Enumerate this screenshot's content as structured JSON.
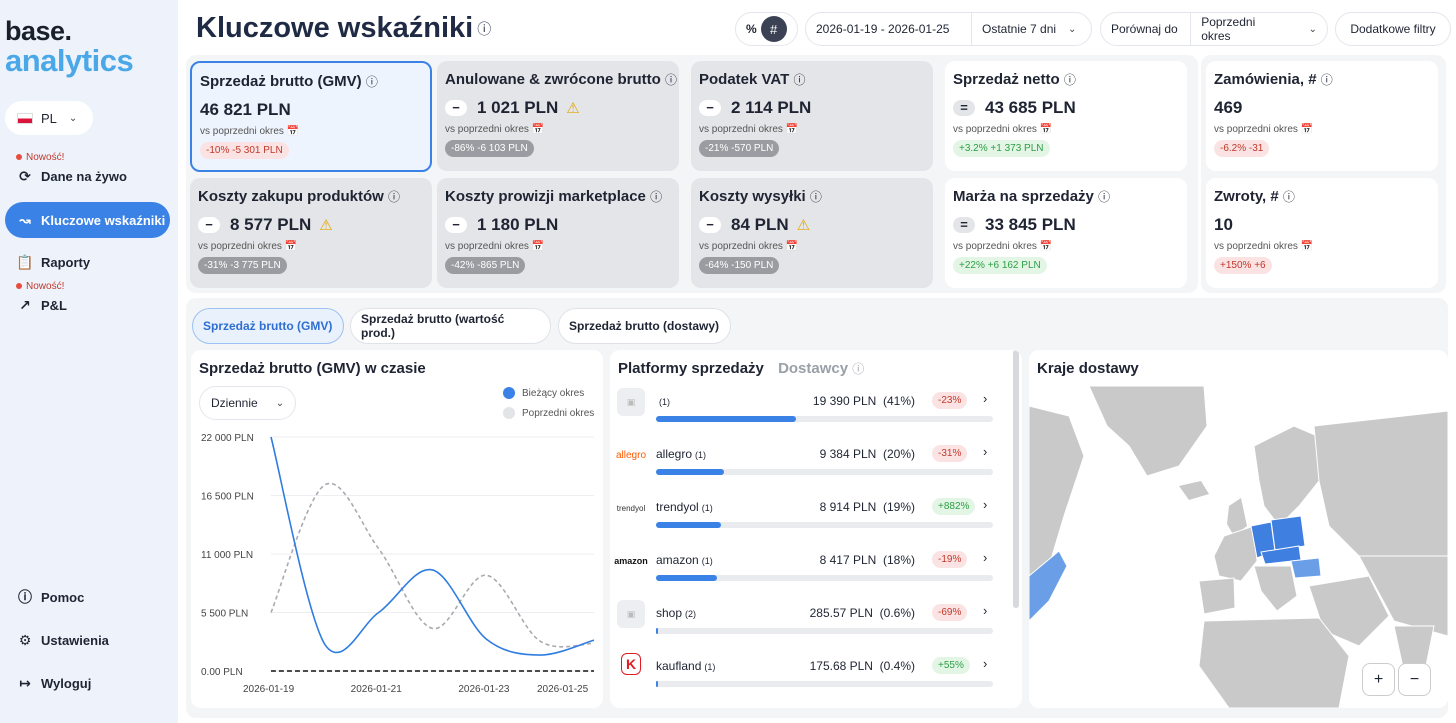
{
  "logo": {
    "line1": "base.",
    "line2": "analytics"
  },
  "lang": {
    "code": "PL"
  },
  "sidebar": {
    "new_label": "Nowość!",
    "items": [
      {
        "label": "Dane na żywo"
      },
      {
        "label": "Kluczowe wskaźniki"
      },
      {
        "label": "Raporty"
      },
      {
        "label": "P&L"
      },
      {
        "label": "Pomoc"
      },
      {
        "label": "Ustawienia"
      },
      {
        "label": "Wyloguj"
      }
    ]
  },
  "header": {
    "title": "Kluczowe wskaźniki",
    "pct": "%",
    "hash": "#",
    "date_range": "2026-01-19 - 2026-01-25",
    "period": "Ostatnie 7 dni",
    "compare_label": "Porównaj do",
    "compare_value": "Poprzedni okres",
    "filters": "Dodatkowe filtry"
  },
  "kpi_sub": "vs poprzedni okres",
  "kpis": [
    {
      "title": "Sprzedaż brutto (GMV)",
      "value": "46 821 PLN",
      "sign": "",
      "chip": "-10%   -5 301 PLN",
      "chip_kind": "red"
    },
    {
      "title": "Anulowane & zwrócone brutto",
      "value": "1 021 PLN",
      "sign": "−",
      "chip": "-86%   -6 103 PLN",
      "chip_kind": "grey"
    },
    {
      "title": "Podatek VAT",
      "value": "2 114 PLN",
      "sign": "−",
      "chip": "-21%   -570 PLN",
      "chip_kind": "grey"
    },
    {
      "title": "Sprzedaż netto",
      "value": "43 685 PLN",
      "sign": "=",
      "chip": "+3.2%   +1 373 PLN",
      "chip_kind": "green"
    },
    {
      "title": "Zamówienia, #",
      "value": "469",
      "sign": "",
      "chip": "-6.2%   -31",
      "chip_kind": "red"
    },
    {
      "title": "Koszty zakupu produktów",
      "value": "8 577 PLN",
      "sign": "−",
      "chip": "-31%   -3 775 PLN",
      "chip_kind": "grey"
    },
    {
      "title": "Koszty prowizji marketplace",
      "value": "1 180 PLN",
      "sign": "−",
      "chip": "-42%   -865 PLN",
      "chip_kind": "grey"
    },
    {
      "title": "Koszty wysyłki",
      "value": "84 PLN",
      "sign": "−",
      "chip": "-64%   -150 PLN",
      "chip_kind": "grey"
    },
    {
      "title": "Marża na sprzedaży",
      "value": "33 845 PLN",
      "sign": "=",
      "chip": "+22%   +6 162 PLN",
      "chip_kind": "green"
    },
    {
      "title": "Zwroty, #",
      "value": "10",
      "sign": "",
      "chip": "+150%   +6",
      "chip_kind": "red"
    }
  ],
  "tabs": [
    "Sprzedaż brutto (GMV)",
    "Sprzedaż brutto (wartość prod.)",
    "Sprzedaż brutto (dostawy)"
  ],
  "chart_panel": {
    "title": "Sprzedaż brutto (GMV) w czasie",
    "granularity": "Dziennie"
  },
  "chart_data": {
    "type": "line",
    "title": "Sprzedaż brutto (GMV) w czasie",
    "y_ticks": [
      "22 000 PLN",
      "16 500 PLN",
      "11 000 PLN",
      "5 500 PLN",
      "0.00 PLN"
    ],
    "x_ticks": [
      "2026-01-19",
      "2026-01-21",
      "2026-01-23",
      "2026-01-25"
    ],
    "ylim": [
      0,
      22000
    ],
    "x": [
      "2026-01-19",
      "2026-01-20",
      "2026-01-21",
      "2026-01-22",
      "2026-01-23",
      "2026-01-24",
      "2026-01-25"
    ],
    "series": [
      {
        "name": "Bieżący okres",
        "color": "#2f7de1",
        "style": "solid",
        "values": [
          22000,
          2500,
          5500,
          9500,
          3000,
          1500,
          2900
        ]
      },
      {
        "name": "Poprzedni okres",
        "color": "#a9abb0",
        "style": "dashed",
        "values": [
          5500,
          17500,
          11500,
          4000,
          9000,
          2800,
          2600
        ]
      },
      {
        "name": "",
        "color": "#111111",
        "style": "dashed",
        "values": [
          0,
          0,
          0,
          0,
          0,
          0,
          0
        ]
      }
    ],
    "legend": "top-right",
    "grid": true
  },
  "platforms": {
    "title": "Platformy sprzedaży",
    "alt_title": "Dostawcy",
    "rows": [
      {
        "name": "",
        "count": "(1)",
        "value": "19 390 PLN",
        "share": "(41%)",
        "fraction": 0.41,
        "change": "-23%",
        "kind": "red",
        "logo": ""
      },
      {
        "name": "allegro",
        "count": "(1)",
        "value": "9 384 PLN",
        "share": "(20%)",
        "fraction": 0.2,
        "change": "-31%",
        "kind": "red",
        "logo": "allegro"
      },
      {
        "name": "trendyol",
        "count": "(1)",
        "value": "8 914 PLN",
        "share": "(19%)",
        "fraction": 0.19,
        "change": "+882%",
        "kind": "green",
        "logo": "trendyol"
      },
      {
        "name": "amazon",
        "count": "(1)",
        "value": "8 417 PLN",
        "share": "(18%)",
        "fraction": 0.18,
        "change": "-19%",
        "kind": "red",
        "logo": "amazon"
      },
      {
        "name": "shop",
        "count": "(2)",
        "value": "285.57 PLN",
        "share": "(0.6%)",
        "fraction": 0.006,
        "change": "-69%",
        "kind": "red",
        "logo": ""
      },
      {
        "name": "kaufland",
        "count": "(1)",
        "value": "175.68 PLN",
        "share": "(0.4%)",
        "fraction": 0.004,
        "change": "+55%",
        "kind": "green",
        "logo": "K"
      }
    ]
  },
  "map": {
    "title": "Kraje dostawy",
    "zoom_in": "+",
    "zoom_out": "−"
  }
}
